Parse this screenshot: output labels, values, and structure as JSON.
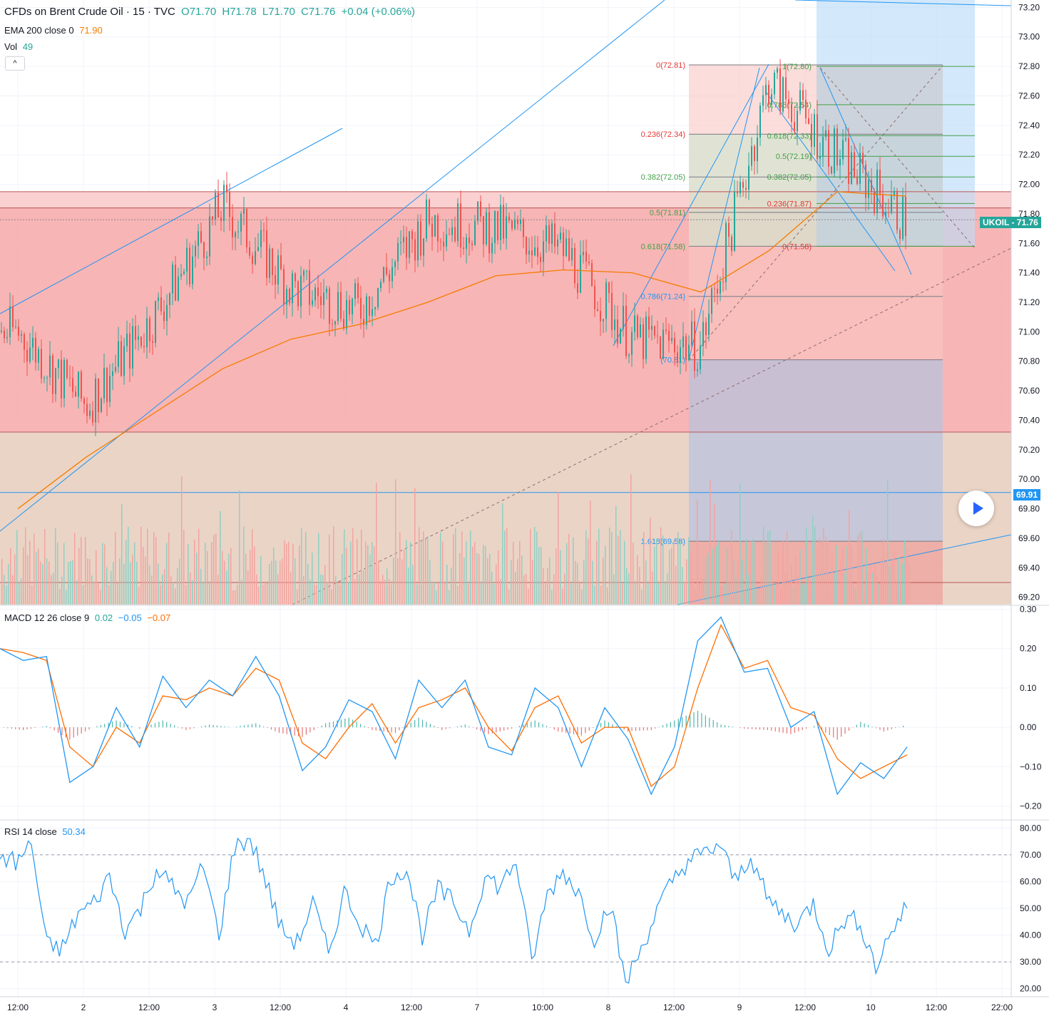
{
  "header": {
    "symbol_title": "CFDs on Brent Crude Oil · 15 · TVC",
    "ohlc": {
      "o": "O71.70",
      "h": "H71.78",
      "l": "L71.70",
      "c": "C71.76",
      "chg": "+0.04 (+0.06%)"
    },
    "ema_label": "EMA 200 close 0",
    "ema_value": "71.90",
    "vol_label": "Vol",
    "vol_value": "49",
    "collapse_glyph": "^"
  },
  "macd_legend": {
    "label": "MACD 12 26 close 9",
    "v1": "0.02",
    "v2": "−0.05",
    "v3": "−0.07"
  },
  "rsi_legend": {
    "label": "RSI 14 close",
    "value": "50.34"
  },
  "price_tags": {
    "ticker": "UKOIL",
    "last_price": "71.76",
    "line_price": "69.91"
  },
  "colors": {
    "up": "#26a69a",
    "down": "#ef5350",
    "ema": "#f57c00",
    "trend": "#2196f3",
    "macd": "#2196f3",
    "signal": "#ff6d00",
    "rsi": "#2196f3",
    "zone": "#f8b4b4"
  },
  "chart_data": [
    {
      "type": "line",
      "pane": "price",
      "series": [
        {
          "name": "EMA 200 close 0",
          "x": [
            "12:00",
            "2",
            "12:00",
            "3",
            "12:00",
            "4",
            "12:00",
            "7",
            "10:00",
            "8",
            "12:00",
            "9",
            "12:00",
            "10"
          ],
          "values": [
            69.8,
            70.15,
            70.45,
            70.75,
            70.95,
            71.05,
            71.2,
            71.38,
            71.42,
            71.4,
            71.27,
            71.55,
            71.95,
            71.92
          ]
        },
        {
          "name": "",
          "x": [
            "12:00",
            "2",
            "12:00",
            "3",
            "12:00",
            "4",
            "12:00",
            "7",
            "10:00",
            "8",
            "12:00",
            "9",
            "12:00",
            "10"
          ],
          "values": [
            71.0,
            70.5,
            71.1,
            71.85,
            71.3,
            71.15,
            71.75,
            71.7,
            71.55,
            70.95,
            70.9,
            72.7,
            72.2,
            71.76
          ]
        }
      ],
      "y_ticks": [
        "73.20",
        "73.00",
        "72.80",
        "72.60",
        "72.40",
        "72.20",
        "72.00",
        "71.80",
        "71.60",
        "71.40",
        "71.20",
        "71.00",
        "70.80",
        "70.60",
        "70.40",
        "70.20",
        "70.00",
        "69.80",
        "69.60",
        "69.40",
        "69.20"
      ],
      "ylim": [
        69.15,
        73.25
      ],
      "x_ticks": [
        "12:00",
        "2",
        "12:00",
        "3",
        "12:00",
        "4",
        "12:00",
        "7",
        "10:00",
        "8",
        "12:00",
        "9",
        "12:00",
        "10",
        "12:00",
        "22:00"
      ],
      "fib_left": [
        {
          "label": "0(72.81)",
          "value": 72.81
        },
        {
          "label": "0.236(72.34)",
          "value": 72.34
        },
        {
          "label": "0.382(72.05)",
          "value": 72.05
        },
        {
          "label": "0.5(71.81)",
          "value": 71.81
        },
        {
          "label": "0.618(71.58)",
          "value": 71.58
        },
        {
          "label": "0.786(71.24)",
          "value": 71.24
        },
        {
          "label": "(70.81)",
          "value": 70.81
        },
        {
          "label": "1.618(69.58)",
          "value": 69.58
        }
      ],
      "fib_right": [
        {
          "label": "1(72.80)",
          "value": 72.8
        },
        {
          "label": "0.786(72.54)",
          "value": 72.54
        },
        {
          "label": "0.618(72.33)",
          "value": 72.33
        },
        {
          "label": "0.5(72.19)",
          "value": 72.19
        },
        {
          "label": "0.382(72.05)",
          "value": 72.05
        },
        {
          "label": "0.236(71.87)",
          "value": 71.87
        },
        {
          "label": "0(71.58)",
          "value": 71.58
        }
      ],
      "horizontal_lines": [
        71.95,
        71.84,
        71.76,
        70.32,
        69.91,
        69.3
      ]
    },
    {
      "type": "line",
      "pane": "macd",
      "series": [
        {
          "name": "MACD",
          "values": [
            0.2,
            0.17,
            0.18,
            -0.14,
            -0.1,
            0.05,
            -0.05,
            0.13,
            0.05,
            0.12,
            0.08,
            0.18,
            0.08,
            -0.11,
            -0.05,
            0.07,
            0.04,
            -0.08,
            0.12,
            0.05,
            0.12,
            -0.05,
            -0.07,
            0.1,
            0.05,
            -0.1,
            0.05,
            -0.03,
            -0.17,
            -0.05,
            0.22,
            0.28,
            0.14,
            0.15,
            0.0,
            0.04,
            -0.17,
            -0.09,
            -0.13,
            -0.05
          ]
        },
        {
          "name": "Signal",
          "values": [
            0.2,
            0.19,
            0.17,
            -0.05,
            -0.1,
            0.0,
            -0.04,
            0.08,
            0.07,
            0.1,
            0.08,
            0.15,
            0.12,
            -0.04,
            -0.08,
            0.0,
            0.06,
            -0.04,
            0.05,
            0.07,
            0.1,
            0.0,
            -0.06,
            0.05,
            0.08,
            -0.04,
            0.0,
            0.0,
            -0.15,
            -0.1,
            0.1,
            0.26,
            0.15,
            0.17,
            0.05,
            0.03,
            -0.08,
            -0.13,
            -0.1,
            -0.07
          ]
        }
      ],
      "y_ticks": [
        "0.30",
        "0.20",
        "0.10",
        "0.00",
        "−0.10",
        "−0.20"
      ],
      "ylim": [
        -0.21,
        0.31
      ]
    },
    {
      "type": "line",
      "pane": "rsi",
      "series": [
        {
          "name": "RSI",
          "values": [
            70,
            67,
            74,
            36,
            35,
            48,
            52,
            62,
            42,
            50,
            65,
            58,
            52,
            66,
            40,
            73,
            76,
            60,
            42,
            37,
            52,
            33,
            56,
            45,
            36,
            62,
            65,
            40,
            57,
            52,
            42,
            62,
            58,
            68,
            30,
            55,
            64,
            56,
            39,
            52,
            22,
            35,
            49,
            60,
            68,
            70,
            74,
            60,
            70,
            54,
            48,
            44,
            52,
            35,
            46,
            45,
            28,
            42,
            50
          ]
        }
      ],
      "y_ticks": [
        "80.00",
        "70.00",
        "60.00",
        "50.00",
        "40.00",
        "30.00",
        "20.00"
      ],
      "ylim": [
        17,
        83
      ],
      "bands": [
        70,
        30
      ]
    }
  ]
}
